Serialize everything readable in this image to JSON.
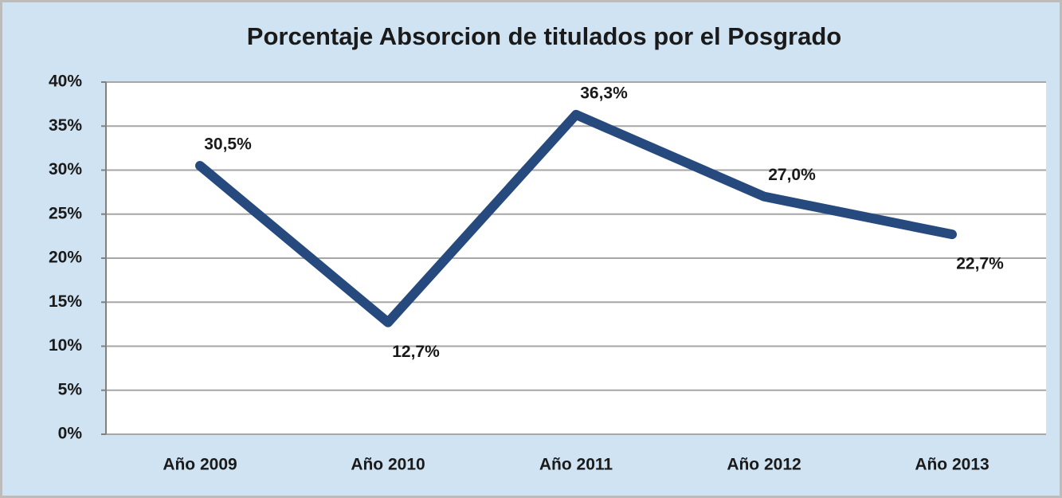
{
  "chart_data": {
    "type": "line",
    "title": "Porcentaje Absorcion de titulados por el Posgrado",
    "categories": [
      "Año 2009",
      "Año 2010",
      "Año 2011",
      "Año 2012",
      "Año 2013"
    ],
    "values": [
      30.5,
      12.7,
      36.3,
      27.0,
      22.7
    ],
    "value_labels": [
      "30,5%",
      "12,7%",
      "36,3%",
      "27,0%",
      "22,7%"
    ],
    "color": "#264a7e",
    "ylim": [
      0,
      40
    ],
    "yticks": [
      {
        "value": 0,
        "label": "0%"
      },
      {
        "value": 5,
        "label": "5%"
      },
      {
        "value": 10,
        "label": "10%"
      },
      {
        "value": 15,
        "label": "15%"
      },
      {
        "value": 20,
        "label": "20%"
      },
      {
        "value": 25,
        "label": "25%"
      },
      {
        "value": 30,
        "label": "30%"
      },
      {
        "value": 35,
        "label": "35%"
      },
      {
        "value": 40,
        "label": "40%"
      }
    ],
    "grid": true
  }
}
